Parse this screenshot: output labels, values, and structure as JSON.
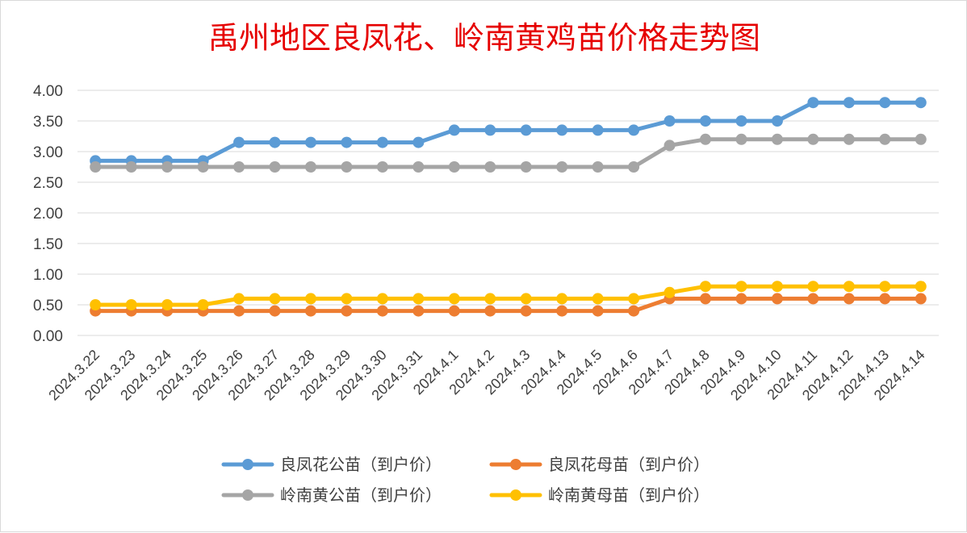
{
  "chart_data": {
    "type": "line",
    "title": "禹州地区良凤花、岭南黄鸡苗价格走势图",
    "ylim": [
      0,
      4
    ],
    "yticks": [
      "0.00",
      "0.50",
      "1.00",
      "1.50",
      "2.00",
      "2.50",
      "3.00",
      "3.50",
      "4.00"
    ],
    "grid": "horizontal",
    "legend_position": "bottom",
    "categories": [
      "2024.3.22",
      "2024.3.23",
      "2024.3.24",
      "2024.3.25",
      "2024.3.26",
      "2024.3.27",
      "2024.3.28",
      "2024.3.29",
      "2024.3.30",
      "2024.3.31",
      "2024.4.1",
      "2024.4.2",
      "2024.4.3",
      "2024.4.4",
      "2024.4.5",
      "2024.4.6",
      "2024.4.7",
      "2024.4.8",
      "2024.4.9",
      "2024.4.10",
      "2024.4.11",
      "2024.4.12",
      "2024.4.13",
      "2024.4.14"
    ],
    "series": [
      {
        "name": "良凤花公苗（到户价）",
        "color": "#5b9bd5",
        "values": [
          2.85,
          2.85,
          2.85,
          2.85,
          3.15,
          3.15,
          3.15,
          3.15,
          3.15,
          3.15,
          3.35,
          3.35,
          3.35,
          3.35,
          3.35,
          3.35,
          3.5,
          3.5,
          3.5,
          3.5,
          3.8,
          3.8,
          3.8,
          3.8
        ]
      },
      {
        "name": "良凤花母苗（到户价）",
        "color": "#ed7d31",
        "values": [
          0.4,
          0.4,
          0.4,
          0.4,
          0.4,
          0.4,
          0.4,
          0.4,
          0.4,
          0.4,
          0.4,
          0.4,
          0.4,
          0.4,
          0.4,
          0.4,
          0.6,
          0.6,
          0.6,
          0.6,
          0.6,
          0.6,
          0.6,
          0.6
        ]
      },
      {
        "name": "岭南黄公苗（到户价）",
        "color": "#a5a5a5",
        "values": [
          2.75,
          2.75,
          2.75,
          2.75,
          2.75,
          2.75,
          2.75,
          2.75,
          2.75,
          2.75,
          2.75,
          2.75,
          2.75,
          2.75,
          2.75,
          2.75,
          3.1,
          3.2,
          3.2,
          3.2,
          3.2,
          3.2,
          3.2,
          3.2
        ]
      },
      {
        "name": "岭南黄母苗（到户价）",
        "color": "#ffc000",
        "values": [
          0.5,
          0.5,
          0.5,
          0.5,
          0.6,
          0.6,
          0.6,
          0.6,
          0.6,
          0.6,
          0.6,
          0.6,
          0.6,
          0.6,
          0.6,
          0.6,
          0.7,
          0.8,
          0.8,
          0.8,
          0.8,
          0.8,
          0.8,
          0.8
        ]
      }
    ],
    "legend_order": [
      0,
      1,
      2,
      3
    ]
  }
}
